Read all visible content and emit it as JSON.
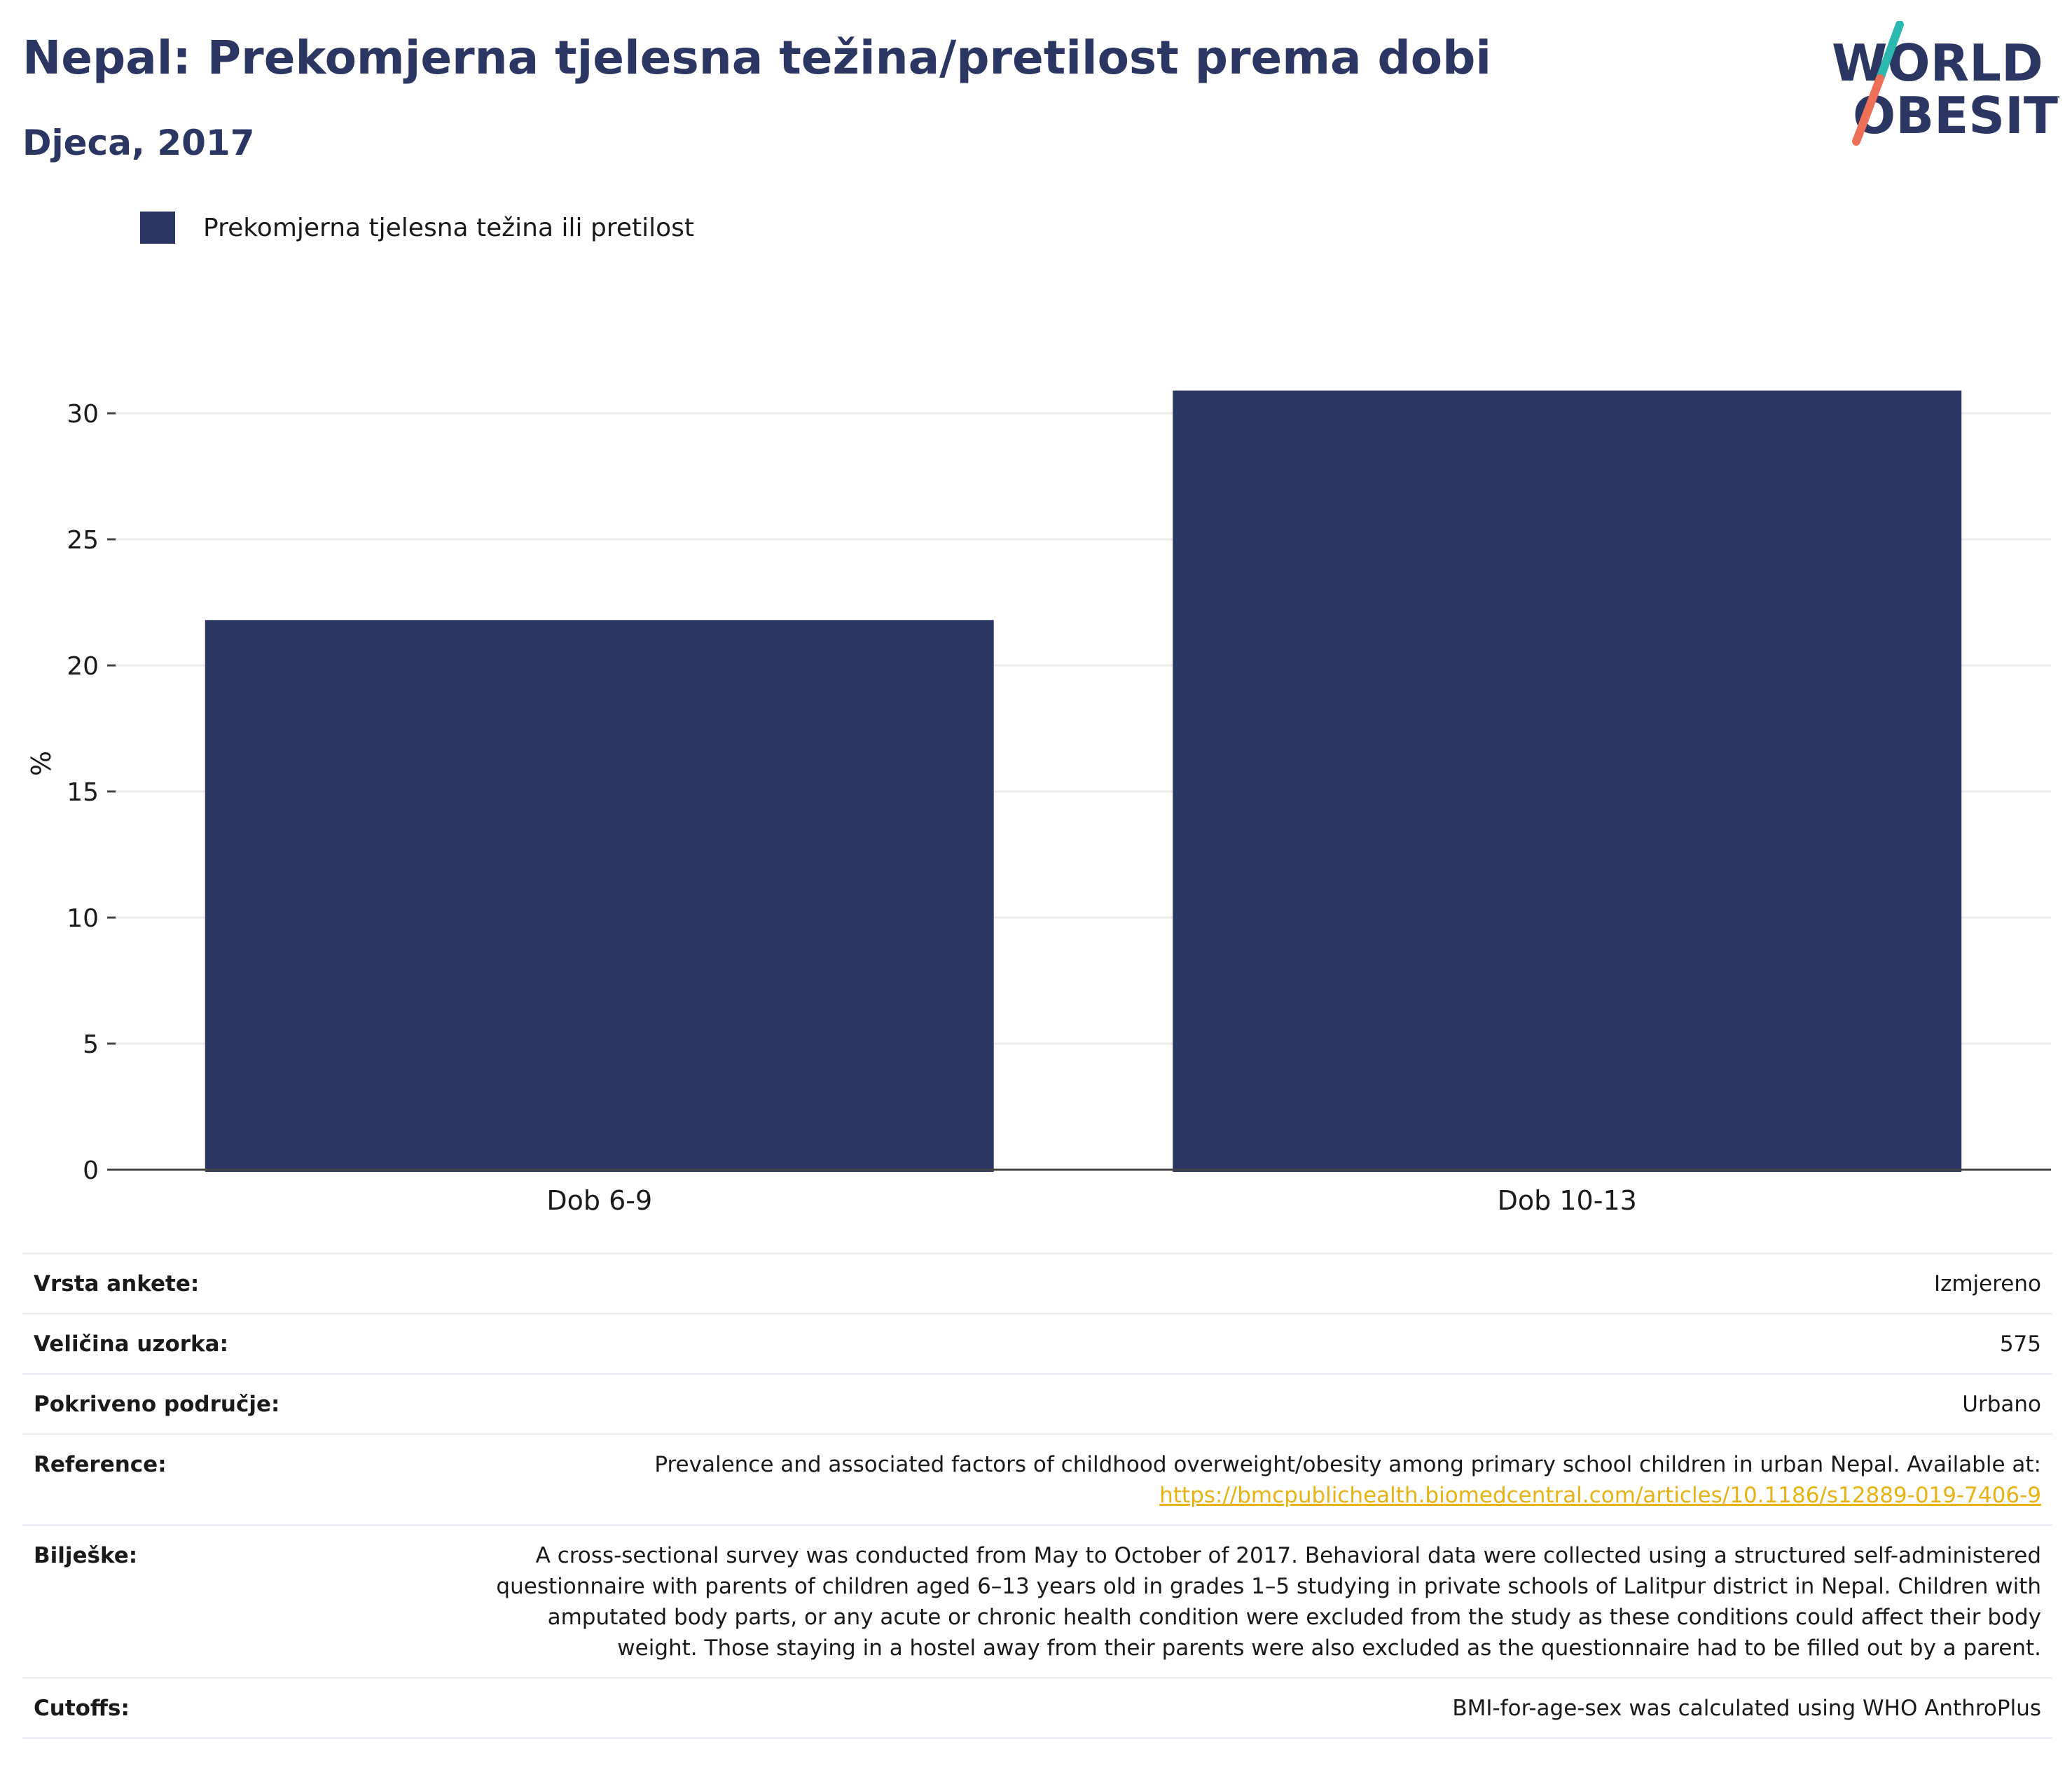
{
  "header": {
    "title": "Nepal: Prekomjerna tjelesna težina/pretilost prema dobi",
    "subtitle": "Djeca, 2017"
  },
  "logo": {
    "line1": "WORLD",
    "line2": "OBESITY",
    "colors": {
      "text": "#2b3762",
      "teal": "#2ab8b0",
      "coral": "#ee6f57"
    }
  },
  "colors": {
    "bar": "#2b3762",
    "grid": "#ebebeb",
    "axis": "#444444",
    "link": "#e8b214"
  },
  "chart_data": {
    "type": "bar",
    "categories": [
      "Dob 6-9",
      "Dob 10-13"
    ],
    "series": [
      {
        "name": "Prekomjerna tjelesna težina ili pretilost",
        "values": [
          21.8,
          30.9
        ]
      }
    ],
    "ylabel": "%",
    "xlabel": "",
    "ylim": [
      0,
      32
    ],
    "yticks": [
      0,
      5,
      10,
      15,
      20,
      25,
      30
    ],
    "grid": true,
    "legend_position": "top-left"
  },
  "info": {
    "survey_type": {
      "label": "Vrsta ankete:",
      "value": "Izmjereno"
    },
    "sample_size": {
      "label": "Veličina uzorka:",
      "value": "575"
    },
    "area": {
      "label": "Pokriveno područje:",
      "value": "Urbano"
    },
    "reference": {
      "label": "Reference:",
      "text": "Prevalence and associated factors of childhood overweight/obesity among primary school children in urban Nepal. Available at:",
      "link": "https://bmcpublichealth.biomedcentral.com/articles/10.1186/s12889-019-7406-9"
    },
    "notes": {
      "label": "Bilješke:",
      "value": "A cross-sectional survey was conducted from May to October of 2017. Behavioral data were collected using a structured self-administered questionnaire with parents of children aged 6–13 years old in grades 1–5 studying in private schools of Lalitpur district in Nepal. Children with amputated body parts, or any acute or chronic health condition were excluded from the study as these conditions could affect their body weight. Those staying in a hostel away from their parents were also excluded as the questionnaire had to be filled out by a parent."
    },
    "cutoffs": {
      "label": "Cutoffs:",
      "value": "BMI-for-age-sex was calculated using WHO AnthroPlus"
    }
  }
}
